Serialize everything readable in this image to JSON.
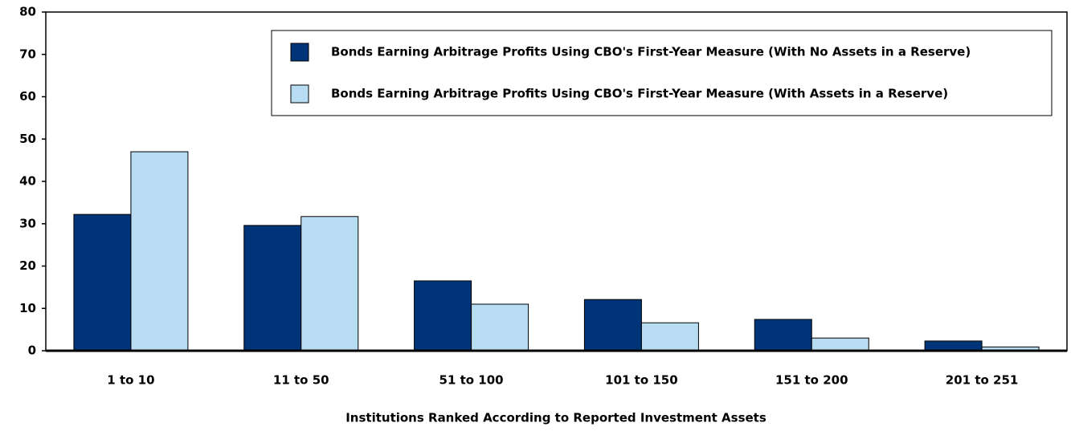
{
  "chart_data": {
    "type": "bar",
    "x_label": "Institutions Ranked According to Reported Investment Assets",
    "categories": [
      "1 to 10",
      "11 to 50",
      "51 to 100",
      "101 to 150",
      "151 to 200",
      "201 to 251"
    ],
    "series": [
      {
        "name": "Bonds Earning Arbitrage Profits Using CBO's First-Year Measure (With No Assets in a Reserve)",
        "color": "#003478",
        "values": [
          32.2,
          29.6,
          16.5,
          12.1,
          7.4,
          2.3
        ]
      },
      {
        "name": "Bonds Earning Arbitrage Profits Using CBO's First-Year Measure (With Assets in a Reserve)",
        "color": "#b8dcf2",
        "values": [
          47.0,
          31.7,
          11.0,
          6.6,
          3.0,
          0.9
        ]
      }
    ],
    "ylim": [
      0,
      80
    ],
    "yticks": [
      0,
      10,
      20,
      30,
      40,
      50,
      60,
      70,
      80
    ],
    "legend": "upper right"
  }
}
